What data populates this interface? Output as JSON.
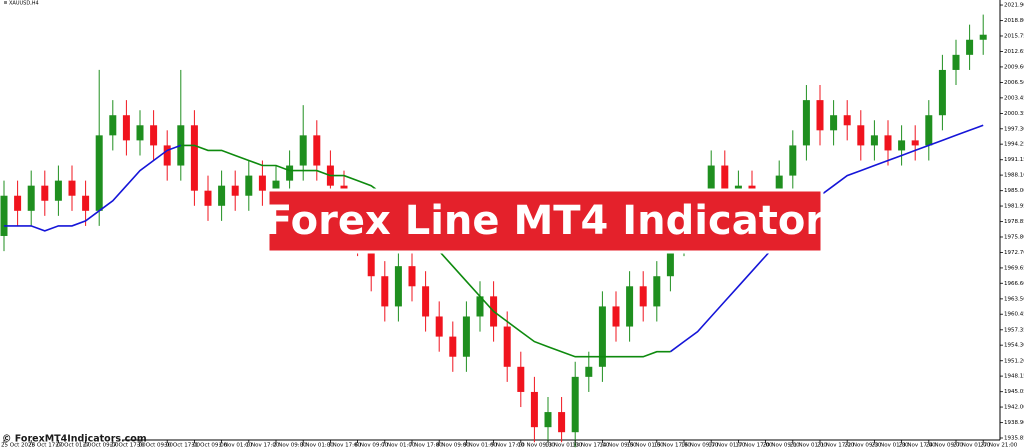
{
  "chart_data": {
    "type": "candlestick",
    "symbol": "XAUUSD,H4",
    "title": "Forex Line MT4 Indicator",
    "watermark": "© ForexMT4Indicators.com",
    "bull_color": "#1f8f1f",
    "bear_color": "#f0141e",
    "categories": [
      "25 Oct 2023",
      null,
      "26 Oct 17:00",
      null,
      "27 Oct 01:00",
      null,
      "27 Oct 09:00",
      null,
      "27 Oct 17:00",
      null,
      "30 Oct 09:00",
      null,
      "30 Oct 17:00",
      null,
      "31 Oct 09:00",
      null,
      "1 Nov 01:00",
      null,
      "1 Nov 17:00",
      null,
      "2 Nov 09:00",
      null,
      "3 Nov 01:00",
      null,
      "3 Nov 17:00",
      null,
      "6 Nov 09:00",
      null,
      "7 Nov 01:00",
      null,
      "7 Nov 17:00",
      null,
      "8 Nov 09:00",
      null,
      "9 Nov 01:00",
      null,
      "9 Nov 17:00",
      null,
      "10 Nov 09:00",
      null,
      "13 Nov 01:00",
      null,
      "13 Nov 17:00",
      null,
      "14 Nov 09:00",
      null,
      "15 Nov 01:00",
      null,
      "15 Nov 17:00",
      null,
      "16 Nov 09:00",
      null,
      "17 Nov 01:00",
      null,
      "17 Nov 17:00",
      null,
      "20 Nov 09:00",
      null,
      "21 Nov 01:00",
      null,
      "21 Nov 17:00",
      null,
      "22 Nov 09:00",
      null,
      "23 Nov 01:00",
      null,
      "23 Nov 17:00",
      null,
      "24 Nov 09:00",
      null,
      "27 Nov 01:00",
      null,
      "27 Nov 21:00"
    ],
    "open": [
      1976,
      1984,
      1981,
      1986,
      1983,
      1987,
      1984,
      1981,
      1996,
      2000,
      1995,
      1998,
      1994,
      1990,
      1998,
      1985,
      1982,
      1986,
      1984,
      1988,
      1985,
      1987,
      1990,
      1996,
      1990,
      1986,
      1982,
      1975,
      1968,
      1962,
      1970,
      1966,
      1960,
      1956,
      1952,
      1960,
      1964,
      1958,
      1950,
      1945,
      1938,
      1941,
      1937,
      1948,
      1950,
      1962,
      1958,
      1966,
      1962,
      1968,
      1975,
      1982,
      1978,
      1990,
      1984,
      1986,
      1980,
      1978,
      1988,
      1994,
      2003,
      1997,
      2000,
      1998,
      1994,
      1996,
      1993,
      1995,
      1994,
      2000,
      2009,
      2012,
      2015
    ],
    "high": [
      1987,
      1987,
      1989,
      1989,
      1990,
      1990,
      1987,
      2009,
      2003,
      2003,
      2001,
      2001,
      1997,
      2009,
      2001,
      1988,
      1989,
      1989,
      1991,
      1991,
      1990,
      1993,
      2002,
      1999,
      1993,
      1989,
      1985,
      1978,
      1971,
      1973,
      1973,
      1969,
      1963,
      1959,
      1963,
      1967,
      1967,
      1961,
      1953,
      1948,
      1944,
      1944,
      1951,
      1953,
      1965,
      1965,
      1969,
      1969,
      1971,
      1978,
      1985,
      1985,
      1993,
      1993,
      1989,
      1989,
      1983,
      1991,
      1997,
      2006,
      2006,
      2003,
      2003,
      2001,
      1999,
      1999,
      1998,
      1998,
      2003,
      2012,
      2015,
      2018,
      2020
    ],
    "low": [
      1973,
      1978,
      1978,
      1980,
      1980,
      1981,
      1978,
      1978,
      1993,
      1992,
      1992,
      1991,
      1987,
      1987,
      1982,
      1979,
      1979,
      1981,
      1981,
      1982,
      1982,
      1984,
      1987,
      1987,
      1983,
      1979,
      1972,
      1965,
      1959,
      1959,
      1963,
      1957,
      1953,
      1949,
      1949,
      1957,
      1955,
      1947,
      1942,
      1935,
      1935,
      1935,
      1934,
      1945,
      1947,
      1955,
      1955,
      1959,
      1959,
      1965,
      1972,
      1975,
      1975,
      1981,
      1981,
      1977,
      1975,
      1975,
      1985,
      1991,
      1994,
      1994,
      1995,
      1991,
      1991,
      1990,
      1990,
      1991,
      1991,
      1997,
      2006,
      2009,
      2012
    ],
    "close": [
      1984,
      1981,
      1986,
      1983,
      1987,
      1984,
      1981,
      1996,
      2000,
      1995,
      1998,
      1994,
      1990,
      1998,
      1985,
      1982,
      1986,
      1984,
      1988,
      1985,
      1987,
      1990,
      1996,
      1990,
      1986,
      1982,
      1975,
      1968,
      1962,
      1970,
      1966,
      1960,
      1956,
      1952,
      1960,
      1964,
      1958,
      1950,
      1945,
      1938,
      1941,
      1937,
      1948,
      1950,
      1962,
      1958,
      1966,
      1962,
      1968,
      1975,
      1982,
      1978,
      1990,
      1984,
      1986,
      1980,
      1978,
      1988,
      1994,
      2003,
      1997,
      2000,
      1998,
      1994,
      1996,
      1993,
      1995,
      1994,
      2000,
      2009,
      2012,
      2015,
      2016
    ],
    "series": [
      {
        "color": "#1515d8",
        "values": [
          1978,
          1978,
          1978,
          1977,
          1978,
          1978,
          1979,
          1981,
          1983,
          1986,
          1989,
          1991,
          1993,
          1994,
          null,
          null,
          null,
          null,
          null,
          null,
          null,
          null,
          null,
          null,
          null,
          null,
          null,
          null,
          null,
          null,
          null,
          null,
          null,
          null,
          null,
          null,
          null,
          null,
          null,
          null,
          null,
          null,
          null,
          null,
          null,
          null,
          null,
          null,
          null,
          1953,
          1955,
          1957,
          1960,
          1963,
          1966,
          1969,
          1972,
          1975,
          1978,
          1981,
          1984,
          1986,
          1988,
          1989,
          1990,
          1991,
          1992,
          1993,
          1994,
          1995,
          1996,
          1997,
          1998
        ]
      },
      {
        "color": "#0e8a0e",
        "values": [
          null,
          null,
          null,
          null,
          null,
          null,
          null,
          null,
          null,
          null,
          null,
          null,
          null,
          1994,
          1994,
          1993,
          1993,
          1992,
          1991,
          1990,
          1990,
          1989,
          1989,
          1989,
          1988,
          1988,
          1987,
          1986,
          1984,
          1982,
          1979,
          1976,
          1973,
          1970,
          1967,
          1964,
          1961,
          1959,
          1957,
          1955,
          1954,
          1953,
          1952,
          1952,
          1952,
          1952,
          1952,
          1952,
          1953,
          1953,
          null,
          null,
          null,
          null,
          null,
          null,
          null,
          null,
          null,
          null,
          null,
          null,
          null,
          null,
          null,
          null,
          null,
          null,
          null,
          null,
          null,
          null,
          null
        ]
      }
    ],
    "ylim": [
      1935.45,
      2022.9
    ],
    "yticks": [
      {
        "value": 2021.9,
        "label": "2021.90"
      },
      {
        "value": 2018.8,
        "label": "2018.80"
      },
      {
        "value": 2015.75,
        "label": "2015.75"
      },
      {
        "value": 2012.65,
        "label": "2012.65"
      },
      {
        "value": 2009.6,
        "label": "2009.60"
      },
      {
        "value": 2006.5,
        "label": "2006.50"
      },
      {
        "value": 2003.45,
        "label": "2003.45"
      },
      {
        "value": 2000.35,
        "label": "2000.35"
      },
      {
        "value": 1997.3,
        "label": "1997.30"
      },
      {
        "value": 1994.25,
        "label": "1994.25"
      },
      {
        "value": 1991.15,
        "label": "1991.15"
      },
      {
        "value": 1988.1,
        "label": "1988.10"
      },
      {
        "value": 1985,
        "label": "1985.00"
      },
      {
        "value": 1981.95,
        "label": "1981.95"
      },
      {
        "value": 1978.85,
        "label": "1978.85"
      },
      {
        "value": 1975.8,
        "label": "1975.80"
      },
      {
        "value": 1972.7,
        "label": "1972.70"
      },
      {
        "value": 1969.65,
        "label": "1969.65"
      },
      {
        "value": 1966.6,
        "label": "1966.60"
      },
      {
        "value": 1963.5,
        "label": "1963.50"
      },
      {
        "value": 1960.45,
        "label": "1960.45"
      },
      {
        "value": 1957.35,
        "label": "1957.35"
      },
      {
        "value": 1954.3,
        "label": "1954.30"
      },
      {
        "value": 1951.2,
        "label": "1951.20"
      },
      {
        "value": 1948.15,
        "label": "1948.15"
      },
      {
        "value": 1945.05,
        "label": "1945.05"
      },
      {
        "value": 1942,
        "label": "1942.00"
      },
      {
        "value": 1938.9,
        "label": "1938.90"
      },
      {
        "value": 1935.85,
        "label": "1935.85"
      }
    ],
    "grid": false
  }
}
